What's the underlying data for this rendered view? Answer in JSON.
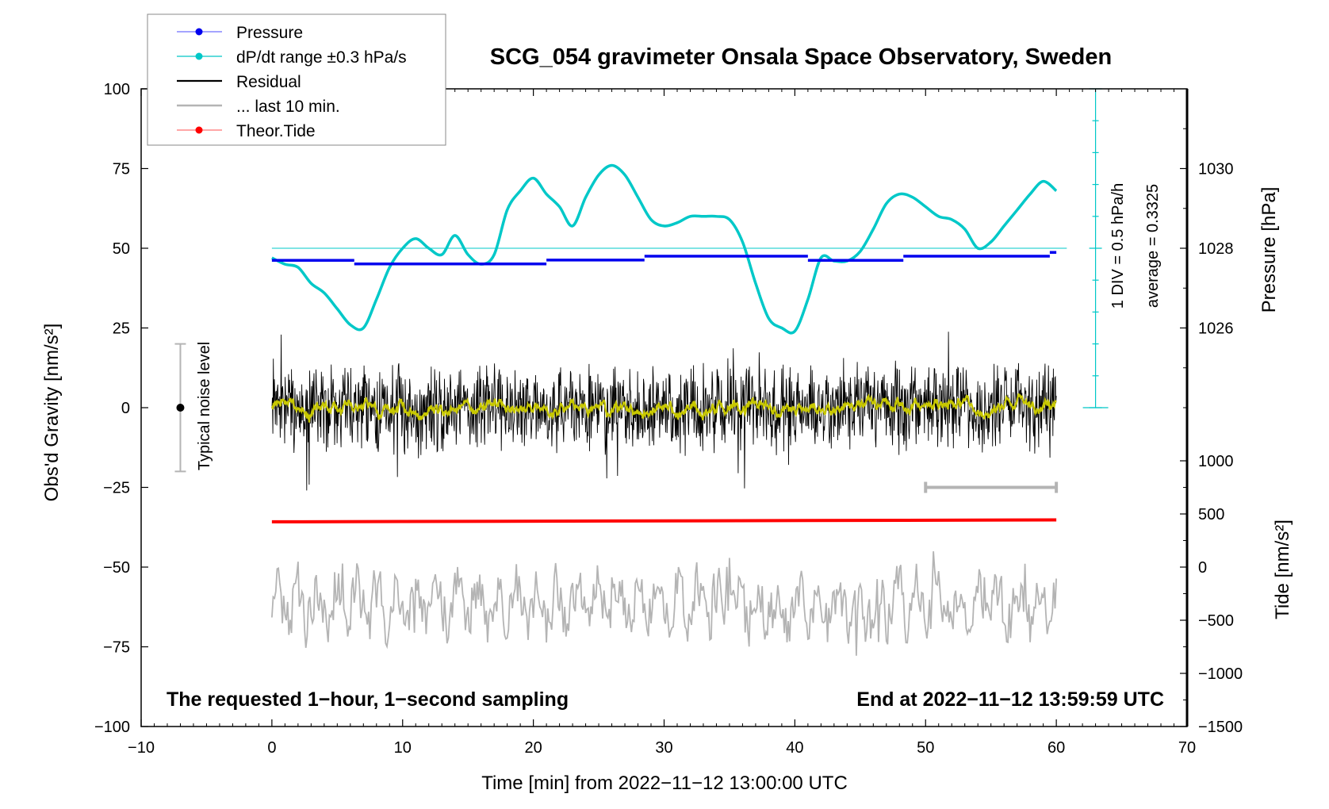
{
  "chart_data": {
    "type": "line",
    "title": "SCG_054 gravimeter Onsala Space Observatory, Sweden",
    "xlabel": "Time [min] from 2022−11−12 13:00:00 UTC",
    "ylabel_left": "Obs'd Gravity [nm/s²]",
    "ylabel_pressure": "Pressure [hPa]",
    "ylabel_tide": "Tide [nm/s²]",
    "xlim": [
      -10,
      70
    ],
    "ylim": [
      -100,
      100
    ],
    "xticks": [
      "−10",
      "0",
      "10",
      "20",
      "30",
      "40",
      "50",
      "60",
      "70"
    ],
    "yticks": [
      "−100",
      "−75",
      "−50",
      "−25",
      "0",
      "25",
      "50",
      "75",
      "100"
    ],
    "pressure_ticks": [
      "1026",
      "1028",
      "1030"
    ],
    "tide_ticks": [
      "−1500",
      "−1000",
      "−500",
      "0",
      "500",
      "1000"
    ],
    "legend": {
      "placement": "top-left",
      "entries": [
        {
          "label": "Pressure",
          "color": "#0000ee"
        },
        {
          "label": "dP/dt range ±0.3 hPa/s",
          "color": "#00c8c8"
        },
        {
          "label": "Residual",
          "color": "#000000"
        },
        {
          "label": "... last 10 min.",
          "color": "#b4b4b4"
        },
        {
          "label": "Theor.Tide",
          "color": "#ff0000"
        }
      ]
    },
    "annotations": {
      "bottom_left": "The requested 1−hour, 1−second sampling",
      "bottom_right": "End at 2022−11−12 13:59:59 UTC",
      "scale_bar_label_1": "1 DIV = 0.5 hPa/h",
      "scale_bar_label_2": "average = 0.3325",
      "noise_label": "Typical noise level"
    },
    "noise_level": {
      "x": -7,
      "center": 0,
      "range": [
        -20,
        20
      ]
    },
    "last10_marker": {
      "x_range": [
        50,
        60
      ],
      "y": -25
    },
    "dpdt_reference_y": 50,
    "pressure_steps": [
      {
        "x": [
          0,
          6.3
        ],
        "y": 46.2
      },
      {
        "x": [
          6.3,
          21
        ],
        "y": 45.1
      },
      {
        "x": [
          21,
          28.5
        ],
        "y": 46.3
      },
      {
        "x": [
          28.5,
          41
        ],
        "y": 47.5
      },
      {
        "x": [
          41,
          48.3
        ],
        "y": 46.2
      },
      {
        "x": [
          48.3,
          59.5
        ],
        "y": 47.5
      },
      {
        "x": [
          59.5,
          60
        ],
        "y": 48.7
      }
    ],
    "dpdt_curve": {
      "x": [
        0,
        1,
        2,
        3,
        4,
        5,
        6,
        7,
        8,
        9,
        10,
        11,
        12,
        13,
        14,
        15,
        16,
        17,
        18,
        19,
        20,
        21,
        22,
        23,
        24,
        25,
        26,
        27,
        28,
        29,
        30,
        31,
        32,
        33,
        34,
        35,
        36,
        37,
        38,
        39,
        40,
        41,
        42,
        43,
        44,
        45,
        46,
        47,
        48,
        49,
        50,
        51,
        52,
        53,
        54,
        55,
        56,
        57,
        58,
        59,
        60
      ],
      "y": [
        47,
        45,
        44,
        39,
        36,
        31,
        26,
        25,
        34,
        44,
        50,
        53,
        50,
        48,
        54,
        48,
        45,
        48,
        62,
        68,
        72,
        67,
        63,
        57,
        66,
        73,
        76,
        73,
        66,
        59,
        57,
        58,
        60,
        60,
        60,
        59,
        52,
        39,
        28,
        25,
        24,
        34,
        47,
        46,
        46,
        49,
        56,
        64,
        67,
        66,
        63,
        60,
        59,
        56,
        50,
        52,
        57,
        62,
        67,
        71,
        68
      ]
    },
    "residual_envelope": {
      "center": 0,
      "amplitude_typical": 10,
      "amplitude_max": 27
    },
    "smoothed_residual": {
      "color": "#c8c800",
      "amplitude": 3
    },
    "theor_tide": {
      "x": [
        0,
        60
      ],
      "y": [
        -35.8,
        -35.2
      ]
    },
    "last10_trace": {
      "center": -62,
      "amplitude_typical": 10,
      "amplitude_max": 24
    }
  }
}
